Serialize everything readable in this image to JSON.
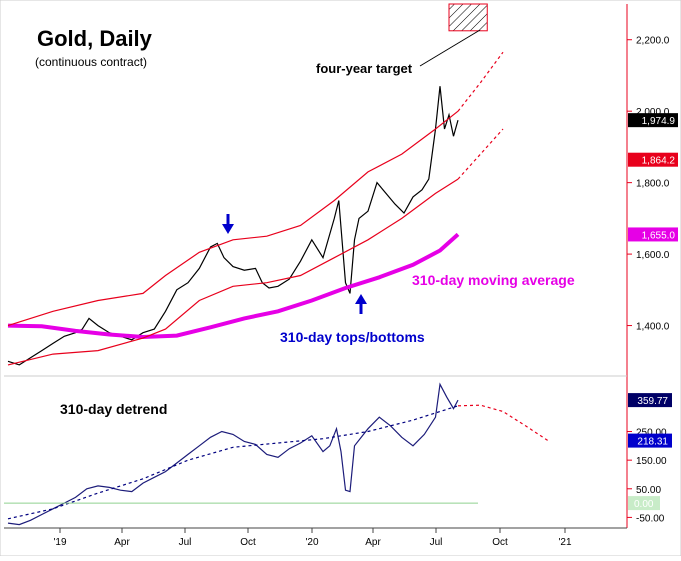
{
  "chart_data": [
    {
      "type": "line",
      "title": "Gold, Daily",
      "subtitle": "(continuous contract)",
      "ylim": [
        1270,
        2300
      ],
      "y_ticks": [
        1400,
        1600,
        1800,
        2000,
        2200
      ],
      "y_tick_labels": [
        "1,400.0",
        "1,600.0",
        "1,800.0",
        "2,000.0",
        "2,200.0"
      ],
      "annotations": {
        "target": "four-year target",
        "ma": "310-day moving average",
        "cycle": "310-day tops/bottoms"
      },
      "price_flags": [
        {
          "label": "1,974.9",
          "value": 1974.9,
          "color": "#000000"
        },
        {
          "label": "1,864.2",
          "value": 1864.2,
          "color": "#e8001c"
        },
        {
          "label": "1,655.0",
          "value": 1655.0,
          "color": "#e600e6"
        }
      ],
      "target_zone": {
        "x_start": 19.6,
        "x_end": 21.3,
        "y_low": 2225,
        "y_high": 2300
      },
      "series": [
        {
          "name": "Gold",
          "color": "#000000",
          "points": [
            [
              0,
              1300
            ],
            [
              0.5,
              1290
            ],
            [
              1,
              1310
            ],
            [
              1.5,
              1330
            ],
            [
              2,
              1350
            ],
            [
              2.5,
              1370
            ],
            [
              3,
              1380
            ],
            [
              3.3,
              1390
            ],
            [
              3.6,
              1420
            ],
            [
              4,
              1400
            ],
            [
              4.5,
              1380
            ],
            [
              5,
              1370
            ],
            [
              5.5,
              1360
            ],
            [
              6,
              1380
            ],
            [
              6.5,
              1390
            ],
            [
              7,
              1440
            ],
            [
              7.5,
              1500
            ],
            [
              8,
              1520
            ],
            [
              8.5,
              1560
            ],
            [
              9,
              1620
            ],
            [
              9.3,
              1630
            ],
            [
              9.6,
              1590
            ],
            [
              10,
              1565
            ],
            [
              10.5,
              1555
            ],
            [
              11,
              1560
            ],
            [
              11.3,
              1520
            ],
            [
              11.6,
              1505
            ],
            [
              12,
              1510
            ],
            [
              12.5,
              1530
            ],
            [
              13,
              1580
            ],
            [
              13.5,
              1640
            ],
            [
              14,
              1590
            ],
            [
              14.5,
              1700
            ],
            [
              14.7,
              1750
            ],
            [
              15,
              1520
            ],
            [
              15.2,
              1490
            ],
            [
              15.4,
              1640
            ],
            [
              15.6,
              1700
            ],
            [
              16,
              1720
            ],
            [
              16.4,
              1800
            ],
            [
              16.8,
              1770
            ],
            [
              17.2,
              1740
            ],
            [
              17.6,
              1715
            ],
            [
              18,
              1760
            ],
            [
              18.4,
              1780
            ],
            [
              18.7,
              1810
            ],
            [
              19,
              1950
            ],
            [
              19.2,
              2070
            ],
            [
              19.4,
              1950
            ],
            [
              19.6,
              1990
            ],
            [
              19.8,
              1930
            ],
            [
              20,
              1974.9
            ]
          ]
        },
        {
          "name": "310-day moving average",
          "color": "#e600e6",
          "points": [
            [
              0,
              1400
            ],
            [
              1.5,
              1398
            ],
            [
              3,
              1385
            ],
            [
              4.5,
              1375
            ],
            [
              6,
              1368
            ],
            [
              7.5,
              1372
            ],
            [
              9,
              1395
            ],
            [
              10.5,
              1420
            ],
            [
              12,
              1440
            ],
            [
              13.5,
              1470
            ],
            [
              15,
              1505
            ],
            [
              16.5,
              1535
            ],
            [
              18,
              1570
            ],
            [
              19.2,
              1610
            ],
            [
              20,
              1655
            ]
          ]
        },
        {
          "name": "310-day tops/bottoms upper band",
          "color": "#e8001c",
          "points": [
            [
              0,
              1400
            ],
            [
              2,
              1440
            ],
            [
              4,
              1470
            ],
            [
              6,
              1490
            ],
            [
              7,
              1540
            ],
            [
              8.5,
              1605
            ],
            [
              10,
              1640
            ],
            [
              11.5,
              1650
            ],
            [
              13,
              1680
            ],
            [
              14.5,
              1750
            ],
            [
              16,
              1830
            ],
            [
              17.5,
              1880
            ],
            [
              19,
              1950
            ],
            [
              20,
              2000
            ]
          ]
        },
        {
          "name": "310-day tops/bottoms lower band",
          "color": "#e8001c",
          "points": [
            [
              0,
              1290
            ],
            [
              2,
              1320
            ],
            [
              4,
              1330
            ],
            [
              6,
              1365
            ],
            [
              7,
              1390
            ],
            [
              8.5,
              1470
            ],
            [
              10,
              1510
            ],
            [
              11.5,
              1520
            ],
            [
              13,
              1540
            ],
            [
              14.5,
              1590
            ],
            [
              16,
              1640
            ],
            [
              17.5,
              1700
            ],
            [
              19,
              1770
            ],
            [
              20,
              1810
            ]
          ]
        },
        {
          "name": "Projection upper",
          "color": "#e8001c",
          "dashed": true,
          "points": [
            [
              20,
              2000
            ],
            [
              21,
              2080
            ],
            [
              22,
              2165
            ]
          ]
        },
        {
          "name": "Projection lower",
          "color": "#e8001c",
          "dashed": true,
          "points": [
            [
              20,
              1810
            ],
            [
              21,
              1880
            ],
            [
              22,
              1950
            ]
          ]
        }
      ]
    },
    {
      "type": "line",
      "title": "310-day detrend",
      "ylim": [
        -80,
        430
      ],
      "y_ticks": [
        -50,
        50,
        150,
        250
      ],
      "y_tick_labels": [
        "-50.00",
        "50.00",
        "150.00",
        "250.00"
      ],
      "zero_label": "0.00",
      "value_flags": [
        {
          "label": "359.77",
          "value": 359.77,
          "color": "#000066"
        },
        {
          "label": "218.31",
          "value": 218.31,
          "color": "#0000cc"
        }
      ],
      "x_tick_labels": [
        "'19",
        "Apr",
        "Jul",
        "Oct",
        "'20",
        "Apr",
        "Jul",
        "Oct",
        "'21"
      ],
      "series": [
        {
          "name": "Detrend",
          "color": "#1c1c7a",
          "points": [
            [
              0,
              -70
            ],
            [
              0.5,
              -75
            ],
            [
              1,
              -60
            ],
            [
              1.5,
              -40
            ],
            [
              2,
              -20
            ],
            [
              2.5,
              0
            ],
            [
              3,
              20
            ],
            [
              3.5,
              50
            ],
            [
              4,
              60
            ],
            [
              4.5,
              55
            ],
            [
              5,
              45
            ],
            [
              5.5,
              40
            ],
            [
              6,
              70
            ],
            [
              6.5,
              90
            ],
            [
              7,
              110
            ],
            [
              7.5,
              140
            ],
            [
              8,
              170
            ],
            [
              8.5,
              200
            ],
            [
              9,
              230
            ],
            [
              9.5,
              250
            ],
            [
              10,
              240
            ],
            [
              10.5,
              215
            ],
            [
              11,
              205
            ],
            [
              11.5,
              170
            ],
            [
              12,
              160
            ],
            [
              12.5,
              190
            ],
            [
              13,
              210
            ],
            [
              13.5,
              235
            ],
            [
              14,
              180
            ],
            [
              14.3,
              200
            ],
            [
              14.6,
              260
            ],
            [
              14.8,
              180
            ],
            [
              15,
              45
            ],
            [
              15.2,
              40
            ],
            [
              15.4,
              200
            ],
            [
              16,
              260
            ],
            [
              16.5,
              300
            ],
            [
              17,
              270
            ],
            [
              17.5,
              230
            ],
            [
              18,
              200
            ],
            [
              18.5,
              240
            ],
            [
              19,
              300
            ],
            [
              19.2,
              415
            ],
            [
              19.5,
              370
            ],
            [
              19.8,
              330
            ],
            [
              20,
              359.77
            ]
          ]
        },
        {
          "name": "Detrend trend",
          "color": "#000080",
          "dashed": true,
          "points": [
            [
              0,
              -55
            ],
            [
              2,
              -20
            ],
            [
              4,
              35
            ],
            [
              6,
              85
            ],
            [
              8,
              150
            ],
            [
              10,
              195
            ],
            [
              12,
              210
            ],
            [
              14,
              225
            ],
            [
              16,
              250
            ],
            [
              18,
              290
            ],
            [
              20,
              340
            ]
          ]
        },
        {
          "name": "Detrend projection",
          "color": "#e8001c",
          "dashed": true,
          "points": [
            [
              20,
              340
            ],
            [
              21,
              342
            ],
            [
              22,
              320
            ],
            [
              23,
              270
            ],
            [
              24,
              218.31
            ]
          ]
        }
      ]
    }
  ]
}
